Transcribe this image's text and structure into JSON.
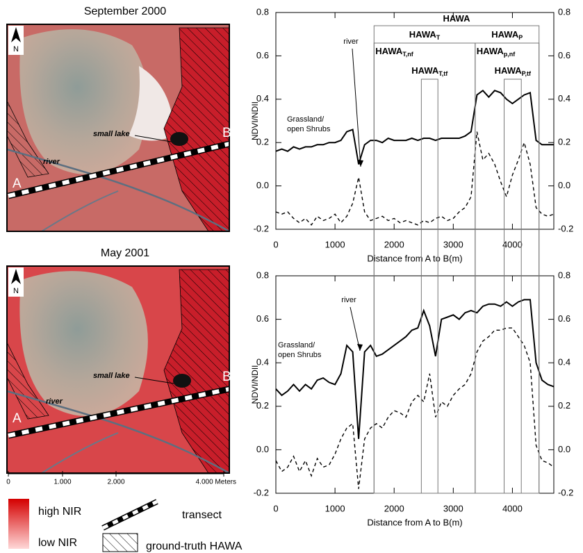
{
  "chart_data": [
    {
      "type": "line",
      "x_label": "Distance from A to B(m)",
      "y_label": "NDVI/NDII",
      "xlim": [
        0,
        4700
      ],
      "xticks": [
        0,
        1000,
        2000,
        3000,
        4000
      ],
      "ylim": [
        -0.2,
        0.8
      ],
      "yticks": [
        -0.2,
        {
          "value": 0,
          "label": "0.0"
        },
        0.2,
        0.4,
        0.6,
        0.8
      ],
      "annotations": {
        "river": "river",
        "grassland": [
          "Grassland/",
          "open Shrubs"
        ]
      },
      "x": [
        0,
        100,
        200,
        300,
        400,
        500,
        600,
        700,
        800,
        900,
        1000,
        1100,
        1200,
        1300,
        1400,
        1500,
        1600,
        1700,
        1800,
        1900,
        2000,
        2100,
        2200,
        2300,
        2400,
        2500,
        2600,
        2700,
        2800,
        2900,
        3000,
        3100,
        3200,
        3300,
        3400,
        3500,
        3600,
        3700,
        3800,
        3900,
        4000,
        4100,
        4200,
        4300,
        4400,
        4500,
        4600,
        4700
      ],
      "series": [
        {
          "color": "#000000",
          "style": "solid",
          "values": [
            0.16,
            0.17,
            0.16,
            0.18,
            0.17,
            0.18,
            0.18,
            0.19,
            0.19,
            0.2,
            0.2,
            0.21,
            0.25,
            0.26,
            0.1,
            0.19,
            0.21,
            0.21,
            0.2,
            0.22,
            0.21,
            0.21,
            0.21,
            0.22,
            0.21,
            0.22,
            0.22,
            0.21,
            0.22,
            0.22,
            0.22,
            0.22,
            0.23,
            0.25,
            0.42,
            0.44,
            0.41,
            0.44,
            0.43,
            0.4,
            0.38,
            0.4,
            0.42,
            0.43,
            0.21,
            0.19,
            0.19,
            0.19
          ]
        },
        {
          "color": "#000000",
          "style": "dashed",
          "values": [
            -0.12,
            -0.13,
            -0.12,
            -0.15,
            -0.17,
            -0.15,
            -0.18,
            -0.14,
            -0.16,
            -0.15,
            -0.13,
            -0.17,
            -0.14,
            -0.08,
            0.04,
            -0.12,
            -0.16,
            -0.15,
            -0.14,
            -0.16,
            -0.15,
            -0.17,
            -0.16,
            -0.17,
            -0.18,
            -0.16,
            -0.17,
            -0.15,
            -0.14,
            -0.16,
            -0.15,
            -0.12,
            -0.1,
            -0.05,
            0.25,
            0.12,
            0.15,
            0.1,
            0.02,
            -0.05,
            0.05,
            0.12,
            0.2,
            0.1,
            -0.1,
            -0.13,
            -0.14,
            -0.13
          ]
        }
      ]
    },
    {
      "type": "line",
      "x_label": "Distance from A to B(m)",
      "y_label": "NDVI/NDII",
      "xlim": [
        0,
        4700
      ],
      "xticks": [
        0,
        1000,
        2000,
        3000,
        4000
      ],
      "ylim": [
        -0.2,
        0.8
      ],
      "yticks": [
        -0.2,
        {
          "value": 0,
          "label": "0.0"
        },
        0.2,
        0.4,
        0.6,
        0.8
      ],
      "annotations": {
        "river": "river",
        "grassland": [
          "Grassland/",
          "open Shrubs"
        ]
      },
      "x": [
        0,
        100,
        200,
        300,
        400,
        500,
        600,
        700,
        800,
        900,
        1000,
        1100,
        1200,
        1300,
        1400,
        1500,
        1600,
        1700,
        1800,
        1900,
        2000,
        2100,
        2200,
        2300,
        2400,
        2500,
        2600,
        2700,
        2800,
        2900,
        3000,
        3100,
        3200,
        3300,
        3400,
        3500,
        3600,
        3700,
        3800,
        3900,
        4000,
        4100,
        4200,
        4300,
        4400,
        4500,
        4600,
        4700
      ],
      "series": [
        {
          "color": "#000000",
          "style": "solid",
          "values": [
            0.28,
            0.25,
            0.27,
            0.3,
            0.27,
            0.3,
            0.28,
            0.32,
            0.33,
            0.31,
            0.3,
            0.35,
            0.48,
            0.45,
            0.05,
            0.45,
            0.48,
            0.43,
            0.44,
            0.46,
            0.48,
            0.5,
            0.52,
            0.55,
            0.56,
            0.64,
            0.57,
            0.43,
            0.6,
            0.61,
            0.62,
            0.6,
            0.63,
            0.64,
            0.63,
            0.66,
            0.67,
            0.67,
            0.66,
            0.68,
            0.66,
            0.68,
            0.69,
            0.69,
            0.4,
            0.32,
            0.3,
            0.29
          ]
        },
        {
          "color": "#000000",
          "style": "dashed",
          "values": [
            -0.05,
            -0.1,
            -0.08,
            -0.03,
            -0.1,
            -0.05,
            -0.12,
            -0.04,
            -0.08,
            -0.07,
            -0.02,
            0.05,
            0.1,
            0.12,
            -0.18,
            0.05,
            0.1,
            0.12,
            0.1,
            0.15,
            0.18,
            0.17,
            0.15,
            0.22,
            0.25,
            0.22,
            0.35,
            0.15,
            0.22,
            0.2,
            0.25,
            0.28,
            0.3,
            0.35,
            0.45,
            0.5,
            0.52,
            0.55,
            0.55,
            0.56,
            0.56,
            0.52,
            0.48,
            0.4,
            0.02,
            -0.05,
            -0.06,
            -0.08
          ]
        }
      ]
    }
  ],
  "hawa_spans": [
    {
      "text": "HAWA",
      "from": 1660,
      "to": 4450
    },
    {
      "text": "HAWA",
      "sub": "T",
      "from": 1660,
      "to": 3370
    },
    {
      "text": "HAWA",
      "sub": "P",
      "from": 3370,
      "to": 4450
    },
    {
      "text": "HAWA",
      "sub": "T,nf",
      "from": 1660
    },
    {
      "text": "HAWA",
      "sub": "T,tf",
      "from": 2460,
      "to": 2740
    },
    {
      "text": "HAWA",
      "sub": "p,nf",
      "from": 3370
    },
    {
      "text": "HAWA",
      "sub": "P,tf",
      "from": 3860,
      "to": 4150
    }
  ],
  "maps": [
    {
      "title": "September 2000",
      "north": "N",
      "lake": "small lake",
      "river": "river",
      "a": "A",
      "b": "B"
    },
    {
      "title": "May 2001",
      "north": "N",
      "lake": "small lake",
      "river": "river",
      "a": "A",
      "b": "B"
    }
  ],
  "scale_bar": [
    "0",
    "1.000",
    "2.000",
    "4.000 Meters"
  ],
  "legend": {
    "high": "high NIR",
    "low": "low NIR",
    "transect": "transect",
    "hawa": "ground-truth HAWA"
  }
}
